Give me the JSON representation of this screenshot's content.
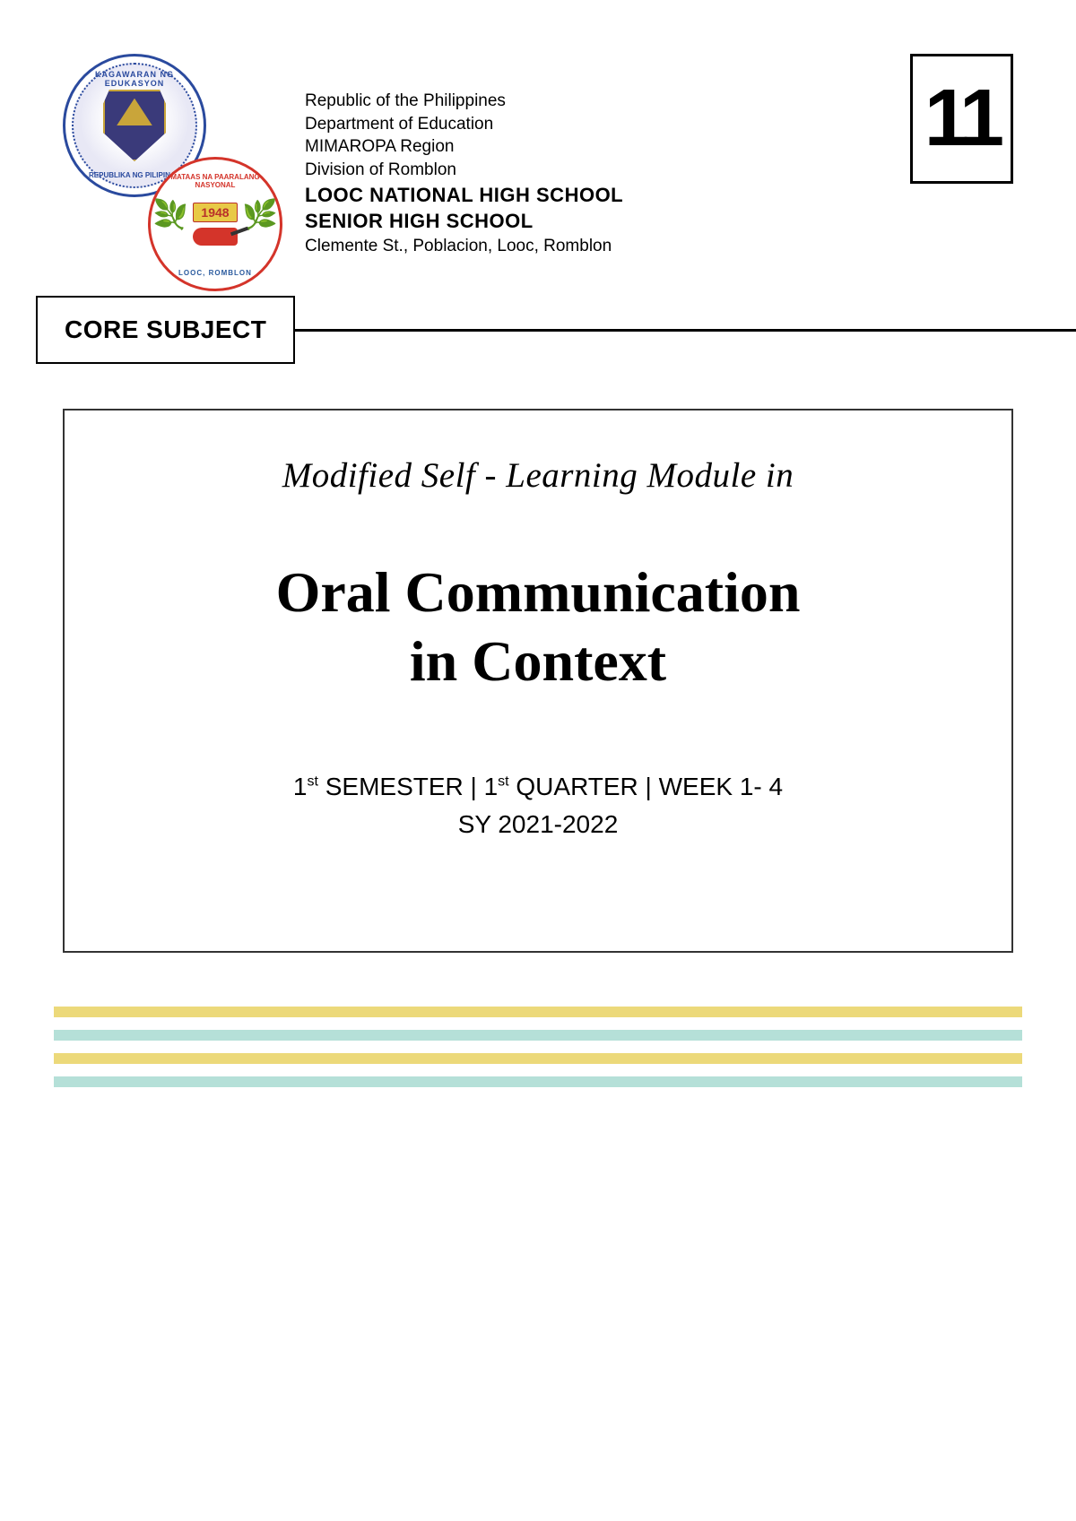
{
  "header": {
    "line1": "Republic of the Philippines",
    "line2": "Department of Education",
    "line3": "MIMAROPA  Region",
    "line4": "Division of Romblon",
    "school1": "LOOC NATIONAL HIGH SCHOOL",
    "school2": "SENIOR HIGH SCHOOL",
    "address": "Clemente St., Poblacion, Looc, Romblon"
  },
  "logos": {
    "deped_top": "KAGAWARAN NG EDUKASYON",
    "deped_bottom": "REPUBLIKA NG PILIPINAS",
    "school_top": "MATAAS NA PAARALANG NASYONAL",
    "school_year": "1948",
    "school_bottom": "LOOC, ROMBLON"
  },
  "grade": "11",
  "subject_label": "CORE SUBJECT",
  "module": {
    "pretitle": "Modified Self - Learning Module in",
    "title_line1": "Oral Communication",
    "title_line2": "in Context",
    "meta_line1_prefix1": "1",
    "meta_line1_sup1": "st",
    "meta_line1_mid1": "  SEMESTER  |  1",
    "meta_line1_sup2": "st",
    "meta_line1_mid2": " QUARTER |  WEEK 1- 4",
    "meta_line2": "SY 2021-2022"
  },
  "colors": {
    "stripe_yellow": "#ecd97a",
    "stripe_teal": "#b5e0d8",
    "deped_blue": "#2a4a9e",
    "school_red": "#d4342a",
    "text": "#000000",
    "bg": "#ffffff"
  }
}
